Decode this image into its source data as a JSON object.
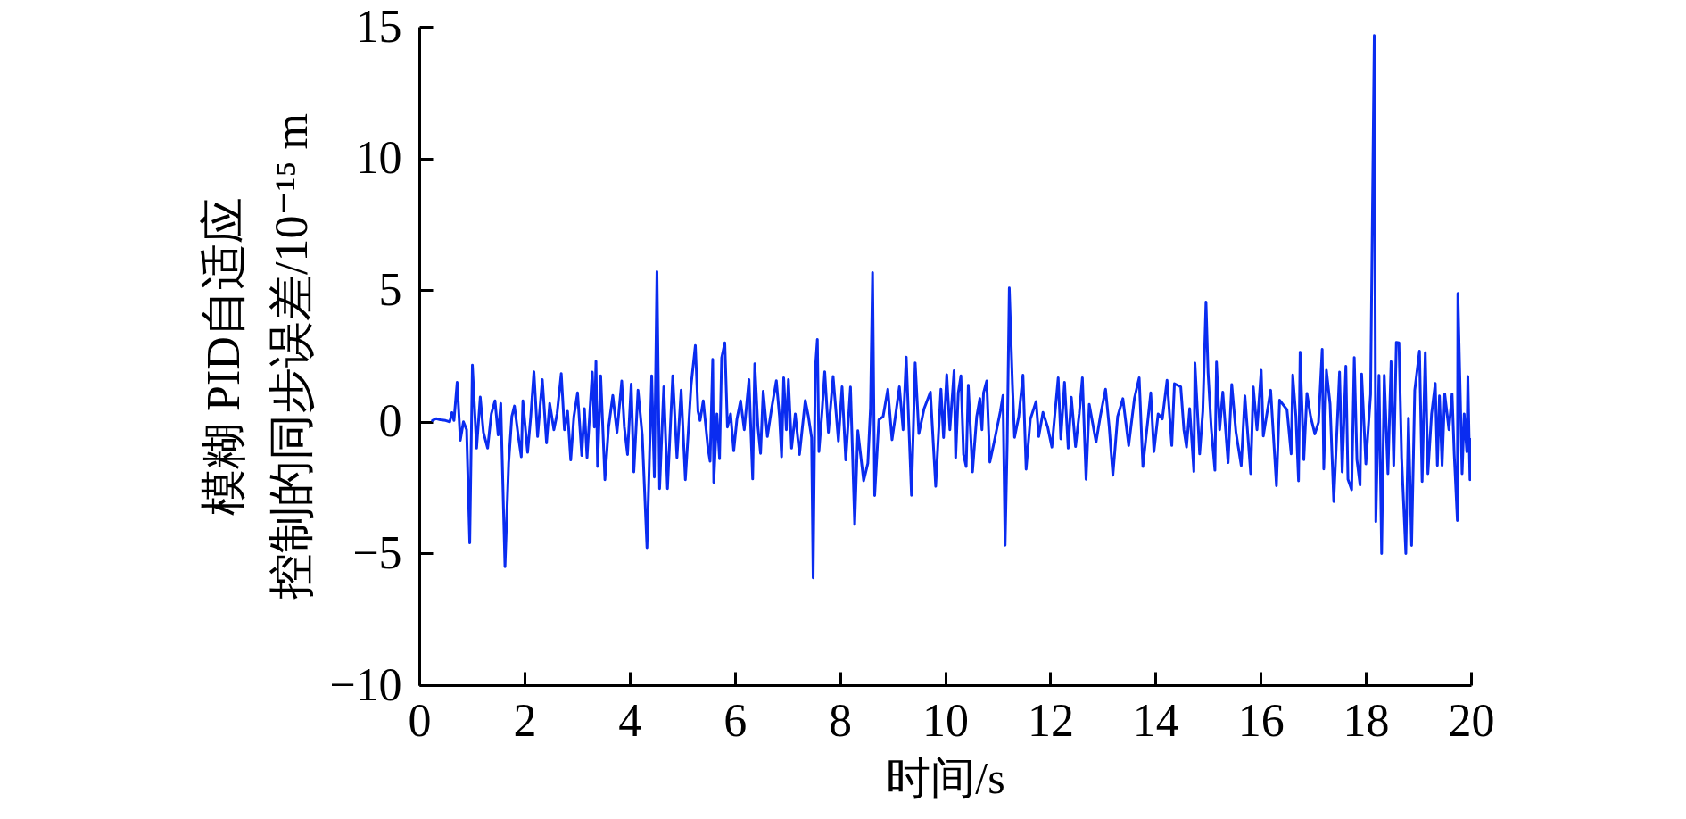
{
  "chart_data": {
    "type": "line",
    "xlabel": "时间/s",
    "ylabel": "模糊 PID自适应控制的同步误差/10⁻¹⁵ m",
    "xlim": [
      0,
      20
    ],
    "xticks": [
      0,
      2,
      4,
      6,
      8,
      10,
      12,
      14,
      16,
      18,
      20
    ],
    "ylim": [
      -10,
      15
    ],
    "yticks": [
      -10,
      -5,
      0,
      5,
      10,
      15
    ],
    "x": [
      0.25,
      0.32,
      0.4,
      0.5,
      0.58,
      0.62,
      0.66,
      0.72,
      0.78,
      0.84,
      0.9,
      0.96,
      1.01,
      1.09,
      1.16,
      1.22,
      1.3,
      1.37,
      1.44,
      1.5,
      1.55,
      1.63,
      1.7,
      1.76,
      1.81,
      1.88,
      1.94,
      1.97,
      2.06,
      2.12,
      2.18,
      2.25,
      2.34,
      2.42,
      2.48,
      2.56,
      2.62,
      2.7,
      2.76,
      2.82,
      2.88,
      2.94,
      3.01,
      3.09,
      3.14,
      3.19,
      3.29,
      3.33,
      3.36,
      3.39,
      3.45,
      3.53,
      3.6,
      3.68,
      3.76,
      3.85,
      3.9,
      3.96,
      4.03,
      4.08,
      4.16,
      4.24,
      4.33,
      4.42,
      4.47,
      4.52,
      4.57,
      4.65,
      4.72,
      4.82,
      4.9,
      4.98,
      5.06,
      5.17,
      5.25,
      5.3,
      5.34,
      5.4,
      5.49,
      5.53,
      5.58,
      5.6,
      5.66,
      5.71,
      5.75,
      5.81,
      5.86,
      5.92,
      5.98,
      6.04,
      6.11,
      6.18,
      6.27,
      6.34,
      6.38,
      6.44,
      6.49,
      6.54,
      6.62,
      6.7,
      6.79,
      6.85,
      6.89,
      6.93,
      6.98,
      7.02,
      7.08,
      7.15,
      7.23,
      7.34,
      7.4,
      7.46,
      7.49,
      7.53,
      7.57,
      7.6,
      7.66,
      7.71,
      7.78,
      7.87,
      7.97,
      8.04,
      8.11,
      8.2,
      8.28,
      8.34,
      8.45,
      8.53,
      8.58,
      8.62,
      8.66,
      8.74,
      8.82,
      8.91,
      8.99,
      9.06,
      9.13,
      9.2,
      9.26,
      9.36,
      9.43,
      9.5,
      9.6,
      9.72,
      9.82,
      9.92,
      9.97,
      10.03,
      10.09,
      10.17,
      10.2,
      10.25,
      10.3,
      10.35,
      10.4,
      10.44,
      10.52,
      10.6,
      10.66,
      10.7,
      10.73,
      10.79,
      10.85,
      10.95,
      11.05,
      11.1,
      11.14,
      11.18,
      11.22,
      11.28,
      11.32,
      11.4,
      11.48,
      11.54,
      11.62,
      11.73,
      11.78,
      11.86,
      11.95,
      12.03,
      12.15,
      12.2,
      12.27,
      12.34,
      12.4,
      12.48,
      12.55,
      12.61,
      12.68,
      12.74,
      12.87,
      12.95,
      13.05,
      13.12,
      13.19,
      13.28,
      13.38,
      13.49,
      13.6,
      13.69,
      13.76,
      13.91,
      13.97,
      14.05,
      14.13,
      14.22,
      14.31,
      14.36,
      14.48,
      14.54,
      14.59,
      14.65,
      14.73,
      14.75,
      14.84,
      14.9,
      14.96,
      15.0,
      15.06,
      15.13,
      15.16,
      15.22,
      15.28,
      15.38,
      15.45,
      15.53,
      15.63,
      15.7,
      15.81,
      15.86,
      15.93,
      16.01,
      16.05,
      16.19,
      16.3,
      16.36,
      16.5,
      16.58,
      16.61,
      16.67,
      16.72,
      16.75,
      16.82,
      16.88,
      16.95,
      17.03,
      17.1,
      17.17,
      17.2,
      17.25,
      17.32,
      17.39,
      17.5,
      17.55,
      17.62,
      17.66,
      17.73,
      17.78,
      17.83,
      17.89,
      17.92,
      18.0,
      18.09,
      18.16,
      18.19,
      18.25,
      18.3,
      18.35,
      18.42,
      18.48,
      18.53,
      18.58,
      18.63,
      18.68,
      18.76,
      18.81,
      18.87,
      18.93,
      19.02,
      19.07,
      19.13,
      19.18,
      19.25,
      19.32,
      19.36,
      19.4,
      19.45,
      19.5,
      19.58,
      19.64,
      19.68,
      19.74,
      19.75,
      19.83,
      19.87,
      19.92,
      19.94,
      19.98,
      20.0
    ],
    "series": [
      {
        "color": "#0a2cf0",
        "values": [
          0.05,
          0.12,
          0.08,
          0.05,
          0.0,
          0.35,
          0.05,
          1.5,
          -0.7,
          0.0,
          -0.3,
          -4.6,
          2.15,
          -1.0,
          0.94,
          -0.4,
          -1.0,
          0.3,
          0.8,
          -0.5,
          0.7,
          -5.5,
          -1.56,
          0.2,
          0.6,
          -0.5,
          -1.33,
          0.8,
          -1.16,
          0.2,
          1.9,
          -0.56,
          1.6,
          -0.8,
          0.7,
          -0.3,
          0.3,
          1.83,
          -0.3,
          0.4,
          -1.45,
          0.2,
          1.1,
          -1.28,
          0.5,
          -1.36,
          1.89,
          -0.2,
          2.3,
          -1.7,
          1.75,
          -2.2,
          -0.2,
          1.0,
          -0.4,
          1.55,
          -0.2,
          -1.24,
          1.43,
          -1.9,
          1.2,
          -0.5,
          -4.78,
          1.75,
          -2.1,
          5.7,
          -2.54,
          1.33,
          -2.54,
          1.75,
          -1.36,
          1.2,
          -2.2,
          1.41,
          2.9,
          0.4,
          0.05,
          0.8,
          -1.0,
          -1.5,
          2.37,
          -2.3,
          0.3,
          -1.4,
          2.43,
          3.0,
          -0.2,
          0.3,
          -1.1,
          0.1,
          0.8,
          -0.3,
          1.6,
          -2.17,
          2.2,
          -0.2,
          -1.2,
          1.16,
          -0.56,
          0.5,
          1.56,
          0.2,
          -1.33,
          1.67,
          -0.3,
          1.6,
          -1.0,
          0.3,
          -1.24,
          0.81,
          0.2,
          -0.6,
          -5.93,
          1.98,
          3.13,
          -1.13,
          0.4,
          1.9,
          -0.4,
          1.72,
          -0.73,
          1.33,
          -1.45,
          1.32,
          -3.9,
          -0.34,
          -2.24,
          -1.58,
          0.5,
          5.67,
          -2.8,
          0.08,
          0.2,
          1.24,
          -0.68,
          0.3,
          1.33,
          -0.3,
          2.46,
          -2.79,
          2.24,
          -0.45,
          0.5,
          1.13,
          -2.45,
          1.24,
          -0.6,
          1.79,
          -0.3,
          1.94,
          -1.36,
          1.1,
          1.75,
          -1.24,
          -1.7,
          1.39,
          -1.9,
          0.2,
          0.88,
          -0.3,
          1.1,
          1.55,
          -1.53,
          -0.59,
          0.4,
          1.0,
          -4.69,
          -0.8,
          5.08,
          1.41,
          -0.59,
          0.2,
          1.77,
          -1.8,
          0.1,
          0.77,
          -0.56,
          0.36,
          -0.2,
          -0.96,
          1.67,
          -0.65,
          1.5,
          -1.0,
          0.93,
          -0.94,
          0.3,
          1.67,
          -2.18,
          0.66,
          -0.77,
          0.2,
          1.24,
          -0.2,
          -2.03,
          0.2,
          0.88,
          -0.9,
          0.9,
          1.67,
          -1.7,
          1.1,
          -1.13,
          0.3,
          0.11,
          1.58,
          -0.9,
          1.45,
          1.33,
          -0.3,
          -0.96,
          0.5,
          -1.89,
          2.23,
          -1.22,
          0.4,
          4.55,
          1.86,
          -0.23,
          -1.84,
          2.27,
          -0.3,
          1.13,
          -1.55,
          1.42,
          -0.4,
          -1.66,
          0.98,
          -1.97,
          1.32,
          -0.3,
          1.96,
          -0.54,
          1.2,
          -2.43,
          0.82,
          0.46,
          -1.22,
          1.78,
          0.2,
          -2.24,
          2.64,
          -1.44,
          1.08,
          0.2,
          -0.46,
          -0.02,
          2.75,
          -1.79,
          1.96,
          0.67,
          -3.03,
          1.89,
          -1.9,
          2.11,
          -2.18,
          -2.58,
          2.44,
          -1.44,
          -2.4,
          1.81,
          -1.6,
          1.05,
          14.67,
          -3.79,
          1.76,
          -5.0,
          1.76,
          -1.97,
          2.29,
          -1.66,
          3.02,
          3.0,
          -1.36,
          -5.0,
          0.14,
          -4.7,
          1.2,
          2.69,
          -2.27,
          2.63,
          -1.97,
          0.3,
          1.46,
          -1.66,
          0.98,
          -1.66,
          1.06,
          -0.3,
          1.06,
          -1.2,
          -3.75,
          4.88,
          -1.97,
          0.3,
          -1.14,
          1.72,
          -2.2,
          -0.67
        ]
      }
    ]
  }
}
